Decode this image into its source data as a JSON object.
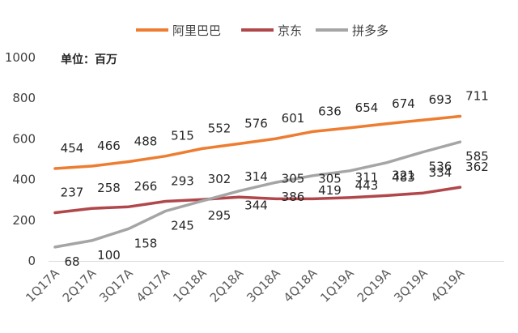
{
  "chart_data": {
    "type": "line",
    "title": "",
    "unit_label": "单位：百万",
    "xlabel": "",
    "ylabel": "",
    "categories": [
      "1Q17A",
      "2Q17A",
      "3Q17A",
      "4Q17A",
      "1Q18A",
      "2Q18A",
      "3Q18A",
      "4Q18A",
      "1Q19A",
      "2Q19A",
      "3Q19A",
      "4Q19A"
    ],
    "ylim": [
      0,
      1000
    ],
    "yticks": [
      "0",
      "200",
      "400",
      "600",
      "800",
      "1000"
    ],
    "grid": false,
    "legend_position": "top",
    "series": [
      {
        "name": "阿里巴巴",
        "color": "#ED7D31",
        "values": [
          454,
          466,
          488,
          515,
          552,
          576,
          601,
          636,
          654,
          674,
          693,
          711
        ]
      },
      {
        "name": "京东",
        "color": "#B0474B",
        "values": [
          237,
          258,
          266,
          293,
          302,
          314,
          305,
          305,
          311,
          321,
          334,
          362
        ]
      },
      {
        "name": "拼多多",
        "color": "#A5A5A5",
        "values": [
          68,
          100,
          158,
          245,
          295,
          344,
          386,
          419,
          443,
          483,
          536,
          585
        ]
      }
    ]
  }
}
